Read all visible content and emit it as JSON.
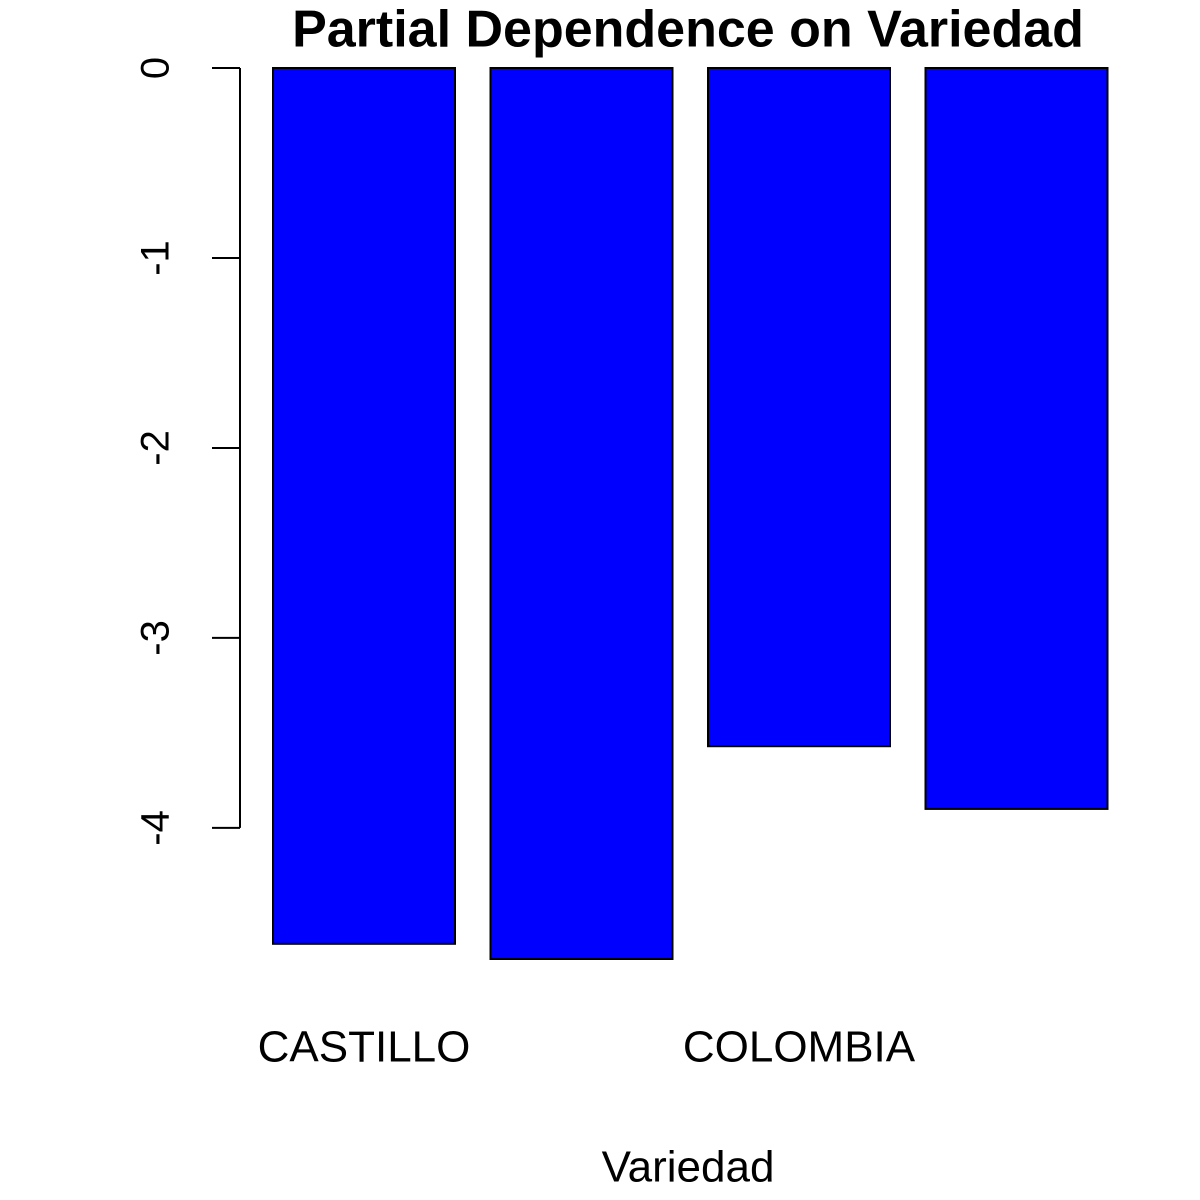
{
  "chart_data": {
    "type": "bar",
    "title": "Partial Dependence on Variedad",
    "x_label": "Variedad",
    "categories": [
      "CASTILLO",
      null,
      "COLOMBIA",
      null
    ],
    "values": [
      -4.61,
      -4.69,
      -3.57,
      -3.9
    ],
    "color": "#0000ff",
    "ylim": [
      -4.69,
      0
    ],
    "yticks": [
      0,
      -1,
      -2,
      -3,
      -4
    ]
  }
}
